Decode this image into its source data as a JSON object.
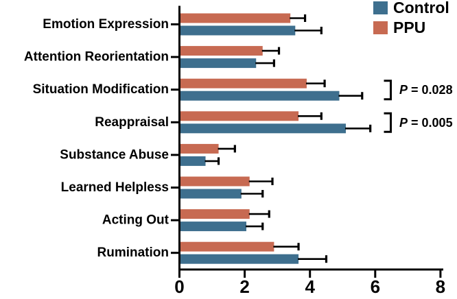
{
  "chart_data": {
    "type": "bar",
    "orientation": "horizontal",
    "title": "",
    "xlabel": "",
    "ylabel": "",
    "grid": false,
    "error_bars": true,
    "legend_position": "top-right",
    "axis_color": "#000000",
    "xlim": [
      0,
      8
    ],
    "xticks": [
      "0",
      "2",
      "4",
      "6",
      "8"
    ],
    "categories": [
      "Emotion Expression",
      "Attention Reorientation",
      "Situation Modification",
      "Reappraisal",
      "Substance Abuse",
      "Learned Helpless",
      "Acting Out",
      "Rumination"
    ],
    "series": [
      {
        "name": "Control",
        "color": "#3E6F8E",
        "values": [
          3.55,
          2.35,
          4.9,
          5.1,
          0.8,
          1.9,
          2.05,
          3.65
        ],
        "errors": [
          0.8,
          0.55,
          0.7,
          0.75,
          0.4,
          0.65,
          0.5,
          0.85
        ]
      },
      {
        "name": "PPU",
        "color": "#C76A52",
        "values": [
          3.4,
          2.55,
          3.9,
          3.65,
          1.2,
          2.15,
          2.15,
          2.9
        ],
        "errors": [
          0.45,
          0.5,
          0.55,
          0.7,
          0.5,
          0.7,
          0.6,
          0.75
        ]
      }
    ],
    "annotations": [
      {
        "category": "Situation Modification",
        "label": "P = 0.028"
      },
      {
        "category": "Reappraisal",
        "label": "P = 0.005"
      }
    ]
  }
}
